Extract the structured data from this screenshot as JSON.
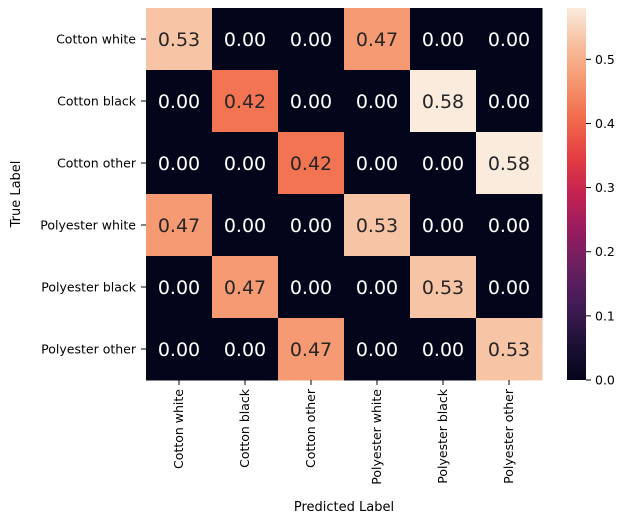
{
  "chart_data": {
    "type": "heatmap",
    "title": "",
    "xlabel": "Predicted Label",
    "ylabel": "True Label",
    "x_categories": [
      "Cotton white",
      "Cotton black",
      "Cotton other",
      "Polyester white",
      "Polyester black",
      "Polyester other"
    ],
    "y_categories": [
      "Cotton white",
      "Cotton black",
      "Cotton other",
      "Polyester white",
      "Polyester black",
      "Polyester other"
    ],
    "values": [
      [
        0.53,
        0.0,
        0.0,
        0.47,
        0.0,
        0.0
      ],
      [
        0.0,
        0.42,
        0.0,
        0.0,
        0.58,
        0.0
      ],
      [
        0.0,
        0.0,
        0.42,
        0.0,
        0.0,
        0.58
      ],
      [
        0.47,
        0.0,
        0.0,
        0.53,
        0.0,
        0.0
      ],
      [
        0.0,
        0.47,
        0.0,
        0.0,
        0.53,
        0.0
      ],
      [
        0.0,
        0.0,
        0.47,
        0.0,
        0.0,
        0.53
      ]
    ],
    "value_format": "0.00",
    "colormap": "rocket",
    "colorbar": {
      "range": [
        0.0,
        0.58
      ],
      "ticks": [
        0.0,
        0.1,
        0.2,
        0.3,
        0.4,
        0.5
      ],
      "tick_labels": [
        "0.0",
        "0.1",
        "0.2",
        "0.3",
        "0.4",
        "0.5"
      ],
      "placement": "right"
    },
    "annotation_colors": {
      "on_dark": "#ffffff",
      "on_light": "#262626"
    }
  }
}
